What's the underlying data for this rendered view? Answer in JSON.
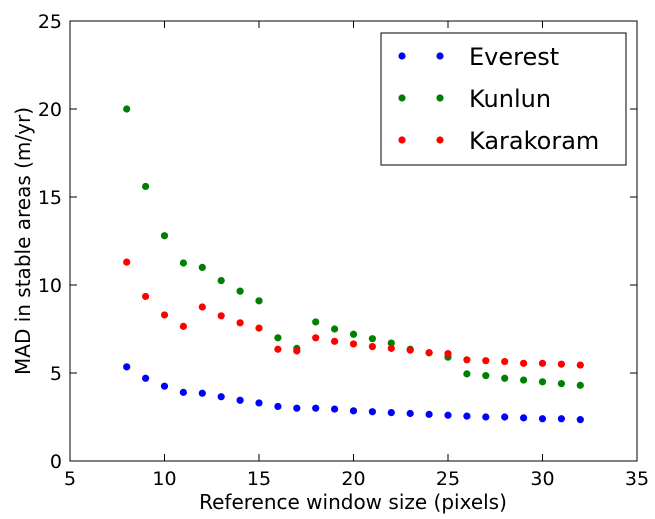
{
  "chart_data": {
    "type": "scatter",
    "title": "",
    "xlabel": "Reference window size (pixels)",
    "ylabel": "MAD in stable areas (m/yr)",
    "xlim": [
      5,
      35
    ],
    "ylim": [
      0,
      25
    ],
    "xticks": [
      5,
      10,
      15,
      20,
      25,
      30,
      35
    ],
    "yticks": [
      0,
      5,
      10,
      15,
      20,
      25
    ],
    "grid": false,
    "legend_position": "top-right",
    "series": [
      {
        "name": "Everest",
        "color": "#0000ff",
        "x": [
          8,
          9,
          10,
          11,
          12,
          13,
          14,
          15,
          16,
          17,
          18,
          19,
          20,
          21,
          22,
          23,
          24,
          25,
          26,
          27,
          28,
          29,
          30,
          31,
          32
        ],
        "y": [
          5.35,
          4.7,
          4.25,
          3.9,
          3.85,
          3.65,
          3.45,
          3.3,
          3.1,
          3.0,
          3.0,
          2.95,
          2.85,
          2.8,
          2.75,
          2.7,
          2.65,
          2.6,
          2.55,
          2.5,
          2.5,
          2.45,
          2.4,
          2.4,
          2.35
        ]
      },
      {
        "name": "Kunlun",
        "color": "#008000",
        "x": [
          8,
          9,
          10,
          11,
          12,
          13,
          14,
          15,
          16,
          17,
          18,
          19,
          20,
          21,
          22,
          23,
          24,
          25,
          26,
          27,
          28,
          29,
          30,
          31,
          32
        ],
        "y": [
          20.0,
          15.6,
          12.8,
          11.25,
          11.0,
          10.25,
          9.65,
          9.1,
          7.0,
          6.4,
          7.9,
          7.5,
          7.2,
          6.95,
          6.7,
          6.35,
          6.15,
          5.9,
          4.95,
          4.85,
          4.7,
          4.6,
          4.5,
          4.4,
          4.3
        ]
      },
      {
        "name": "Karakoram",
        "color": "#ff0000",
        "x": [
          8,
          9,
          10,
          11,
          12,
          13,
          14,
          15,
          16,
          17,
          18,
          19,
          20,
          21,
          22,
          23,
          24,
          25,
          26,
          27,
          28,
          29,
          30,
          31,
          32
        ],
        "y": [
          11.3,
          9.35,
          8.3,
          7.65,
          8.75,
          8.25,
          7.85,
          7.55,
          6.35,
          6.25,
          7.0,
          6.8,
          6.65,
          6.5,
          6.4,
          6.3,
          6.15,
          6.1,
          5.75,
          5.7,
          5.65,
          5.55,
          5.55,
          5.5,
          5.45
        ]
      }
    ]
  }
}
